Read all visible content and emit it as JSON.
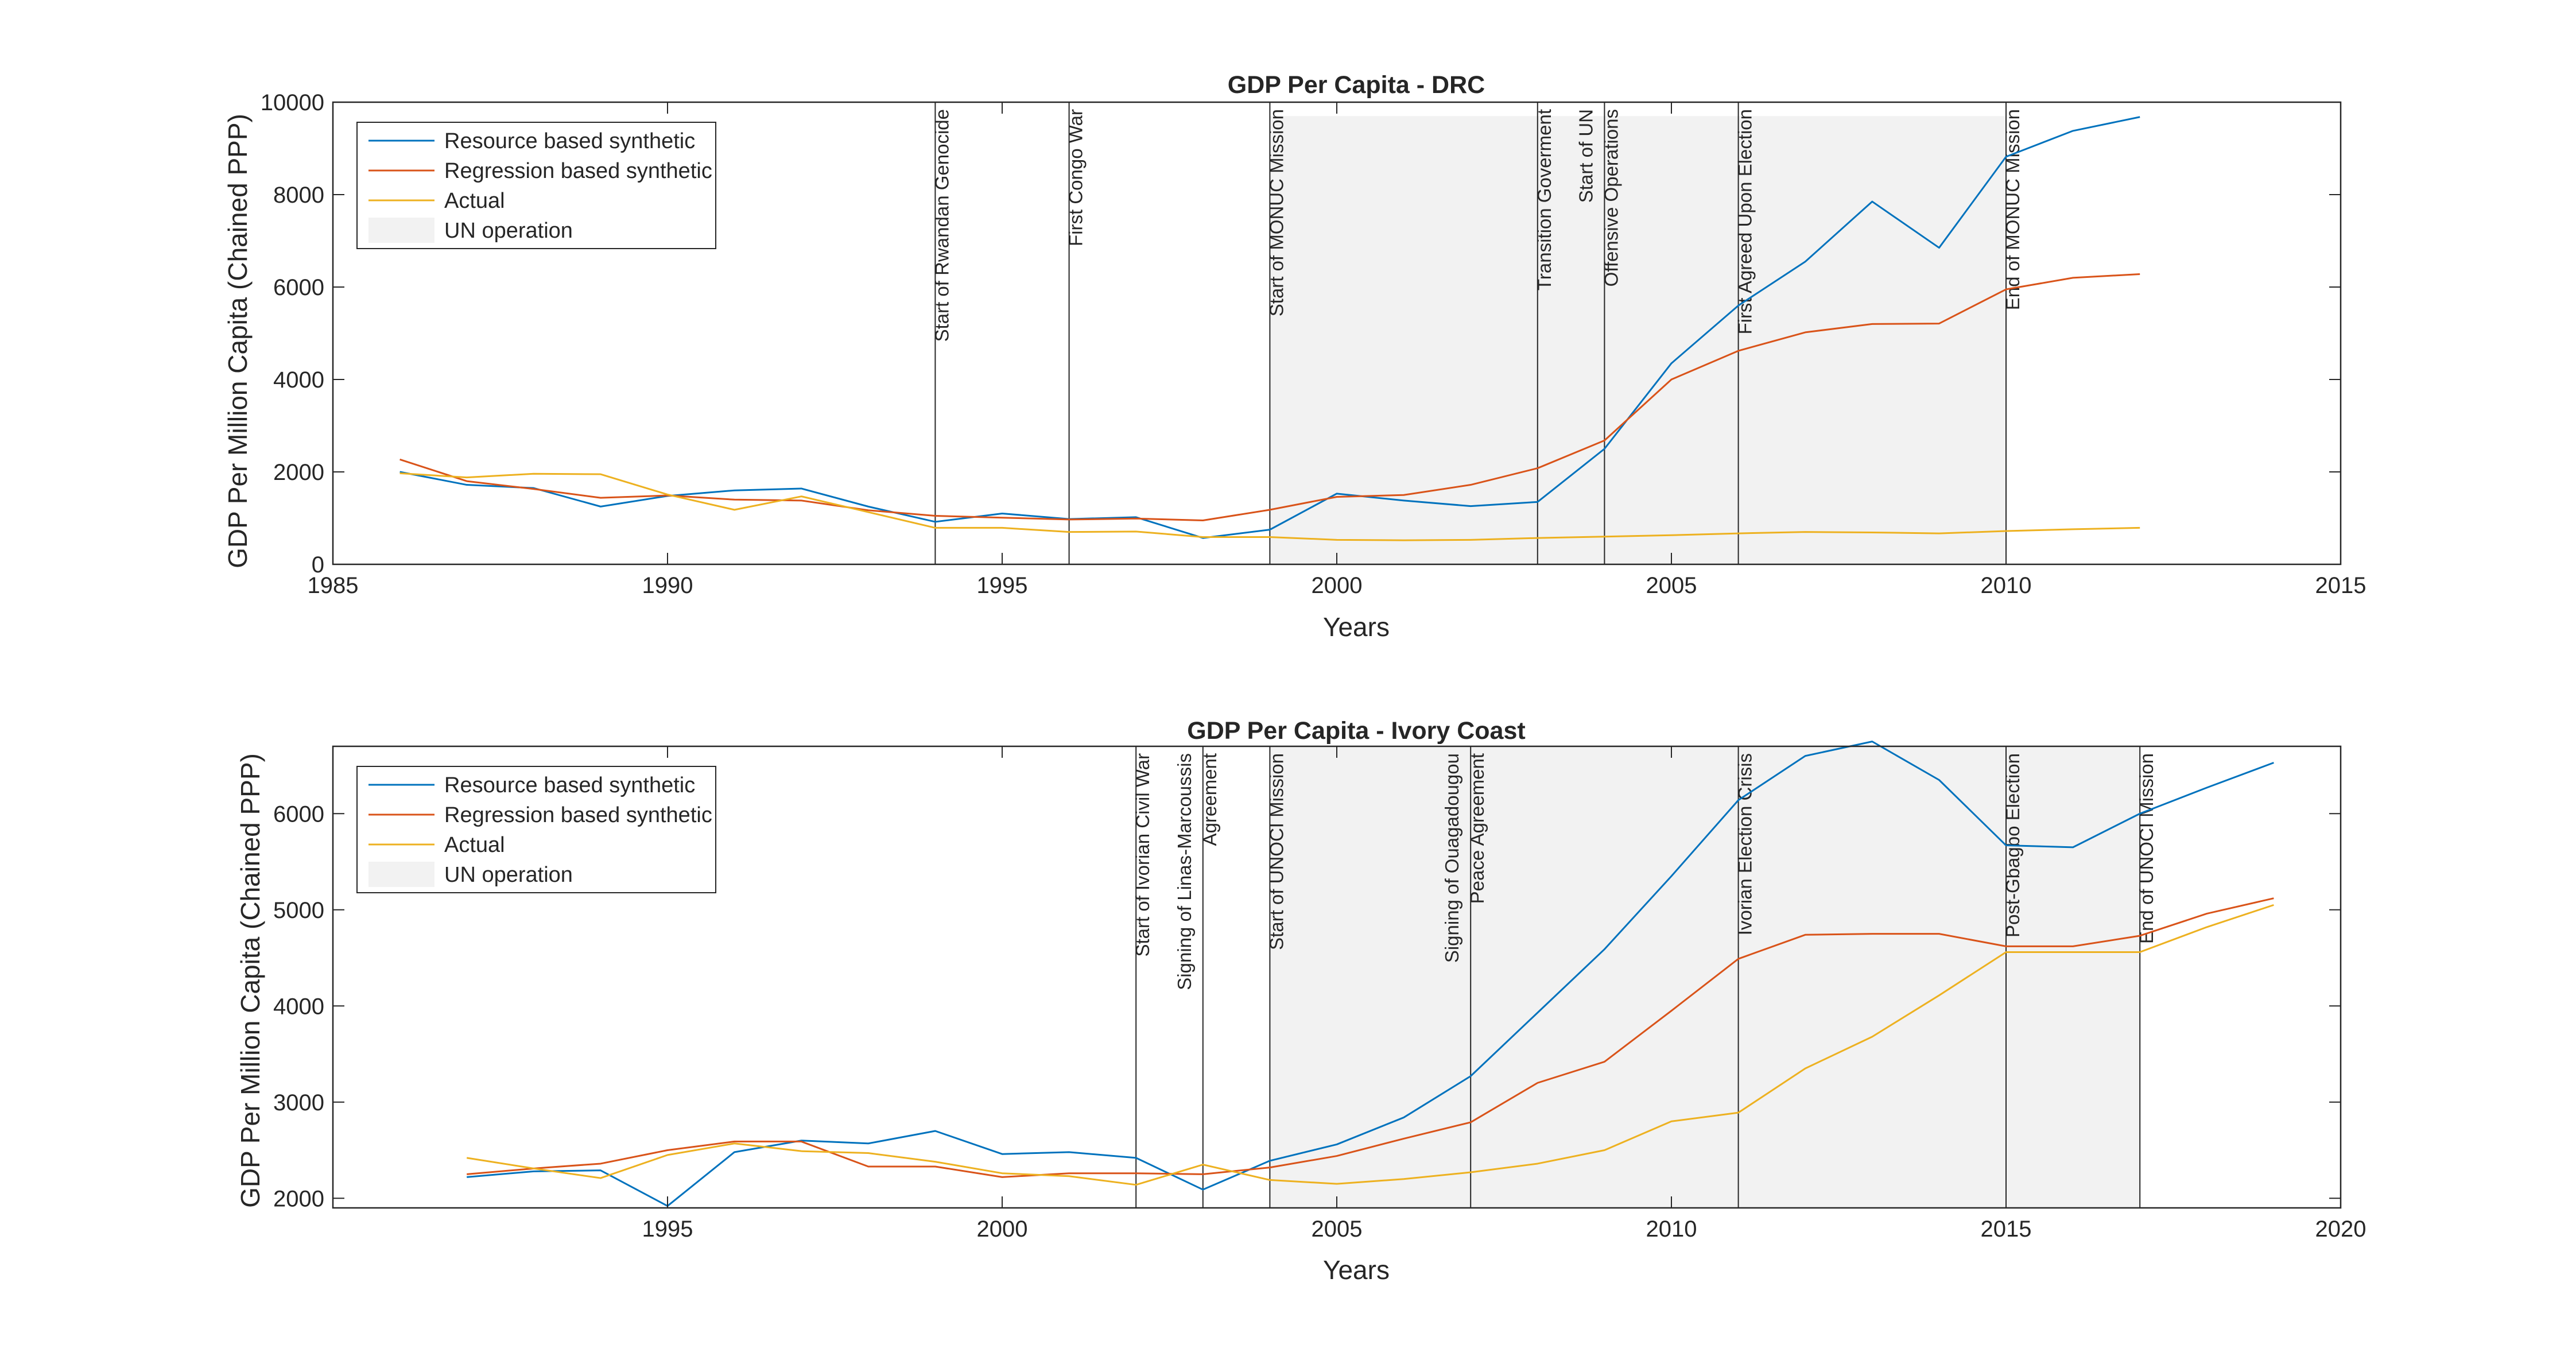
{
  "colors": {
    "resource": "#0072BD",
    "regression": "#D95319",
    "actual": "#EDB120",
    "un_shade": "#F2F2F2",
    "axes": "#262626",
    "event_line": "#262626"
  },
  "chart_data": [
    {
      "type": "line",
      "title": "GDP Per Capita - DRC",
      "xlabel": "Years",
      "ylabel": "GDP Per Million Capita (Chained PPP)",
      "xlim": [
        1985,
        2015
      ],
      "ylim": [
        0,
        10000
      ],
      "xticks": [
        1985,
        1990,
        1995,
        2000,
        2005,
        2010,
        2015
      ],
      "yticks": [
        0,
        2000,
        4000,
        6000,
        8000,
        10000
      ],
      "grid": false,
      "legend_position": "top-left",
      "legend": [
        "Resource based synthetic",
        "Regression based synthetic",
        "Actual",
        "UN operation"
      ],
      "shaded_regions": [
        {
          "label": "UN operation",
          "x": [
            1999,
            2010
          ],
          "y": [
            0,
            9700
          ]
        }
      ],
      "events": [
        {
          "x": 1994,
          "lines": [
            "Start of Rwandan Genocide"
          ]
        },
        {
          "x": 1996,
          "lines": [
            "First Congo War"
          ]
        },
        {
          "x": 1999,
          "lines": [
            "Start of MONUC Mission"
          ]
        },
        {
          "x": 2003,
          "lines": [
            "Transition Goverment"
          ]
        },
        {
          "x": 2004,
          "lines": [
            "Start of UN",
            "Offensive Operations"
          ]
        },
        {
          "x": 2006,
          "lines": [
            "First Agreed Upon Election"
          ]
        },
        {
          "x": 2010,
          "lines": [
            "End of MONUC Mission"
          ]
        }
      ],
      "x": [
        1986,
        1987,
        1988,
        1989,
        1990,
        1991,
        1992,
        1993,
        1994,
        1995,
        1996,
        1997,
        1998,
        1999,
        2000,
        2001,
        2002,
        2003,
        2004,
        2005,
        2006,
        2007,
        2008,
        2009,
        2010,
        2011,
        2012
      ],
      "series": [
        {
          "name": "Resource based synthetic",
          "color_key": "resource",
          "values": [
            2000,
            1720,
            1650,
            1250,
            1480,
            1600,
            1640,
            1250,
            920,
            1100,
            980,
            1020,
            570,
            750,
            1530,
            1380,
            1260,
            1350,
            2500,
            4350,
            5600,
            6550,
            7850,
            6850,
            8820,
            9380,
            9680
          ]
        },
        {
          "name": "Regression based synthetic",
          "color_key": "regression",
          "values": [
            2270,
            1800,
            1630,
            1440,
            1490,
            1400,
            1380,
            1170,
            1050,
            1010,
            970,
            990,
            950,
            1180,
            1460,
            1500,
            1720,
            2080,
            2680,
            4000,
            4620,
            5020,
            5200,
            5210,
            5950,
            6200,
            6280
          ]
        },
        {
          "name": "Actual",
          "color_key": "actual",
          "values": [
            1970,
            1880,
            1960,
            1950,
            1510,
            1180,
            1470,
            1130,
            790,
            790,
            700,
            710,
            590,
            590,
            530,
            520,
            530,
            570,
            600,
            630,
            670,
            700,
            690,
            670,
            720,
            760,
            790
          ]
        }
      ]
    },
    {
      "type": "line",
      "title": "GDP Per Capita - Ivory Coast",
      "xlabel": "Years",
      "ylabel": "GDP Per Million Capita (Chained PPP)",
      "xlim": [
        1990,
        2020
      ],
      "ylim": [
        1900,
        6700
      ],
      "xticks": [
        1995,
        2000,
        2005,
        2010,
        2015,
        2020
      ],
      "yticks": [
        2000,
        3000,
        4000,
        5000,
        6000
      ],
      "grid": false,
      "legend_position": "top-left",
      "legend": [
        "Resource based synthetic",
        "Regression based synthetic",
        "Actual",
        "UN operation"
      ],
      "shaded_regions": [
        {
          "label": "UN operation",
          "x": [
            2004,
            2017
          ],
          "y": [
            1900,
            6700
          ]
        }
      ],
      "events": [
        {
          "x": 2002,
          "lines": [
            "Start of Ivorian Civil War"
          ]
        },
        {
          "x": 2003,
          "lines": [
            "Signing of Linas-Marcoussis",
            "Agreement"
          ]
        },
        {
          "x": 2004,
          "lines": [
            "Start of UNOCI  Mission"
          ]
        },
        {
          "x": 2007,
          "lines": [
            "Signing of Ouagadougou",
            "Peace Agreement"
          ]
        },
        {
          "x": 2011,
          "lines": [
            "Ivorian Election Crisis"
          ]
        },
        {
          "x": 2015,
          "lines": [
            "Post-Gbagbo Election"
          ]
        },
        {
          "x": 2017,
          "lines": [
            "End of UNOCI  Mission"
          ]
        }
      ],
      "x": [
        1992,
        1993,
        1994,
        1995,
        1996,
        1997,
        1998,
        1999,
        2000,
        2001,
        2002,
        2003,
        2004,
        2005,
        2006,
        2007,
        2008,
        2009,
        2010,
        2011,
        2012,
        2013,
        2014,
        2015,
        2016,
        2017,
        2018,
        2019
      ],
      "series": [
        {
          "name": "Resource based synthetic",
          "color_key": "resource",
          "values": [
            2220,
            2280,
            2290,
            1920,
            2480,
            2600,
            2570,
            2700,
            2460,
            2480,
            2420,
            2090,
            2390,
            2560,
            2840,
            3270,
            3930,
            4590,
            5350,
            6140,
            6600,
            6750,
            6350,
            5670,
            5650,
            6000,
            6270,
            6530
          ]
        },
        {
          "name": "Regression based synthetic",
          "color_key": "regression",
          "values": [
            2250,
            2310,
            2360,
            2500,
            2590,
            2590,
            2330,
            2330,
            2220,
            2260,
            2260,
            2250,
            2320,
            2440,
            2620,
            2790,
            3200,
            3420,
            3950,
            4490,
            4740,
            4750,
            4750,
            4620,
            4620,
            4730,
            4960,
            5120
          ]
        },
        {
          "name": "Actual",
          "color_key": "actual",
          "values": [
            2420,
            2310,
            2210,
            2450,
            2570,
            2490,
            2470,
            2380,
            2260,
            2230,
            2140,
            2350,
            2190,
            2150,
            2200,
            2270,
            2360,
            2500,
            2800,
            2890,
            3350,
            3680,
            4110,
            4560,
            4560,
            4560,
            4820,
            5050
          ]
        }
      ]
    }
  ]
}
